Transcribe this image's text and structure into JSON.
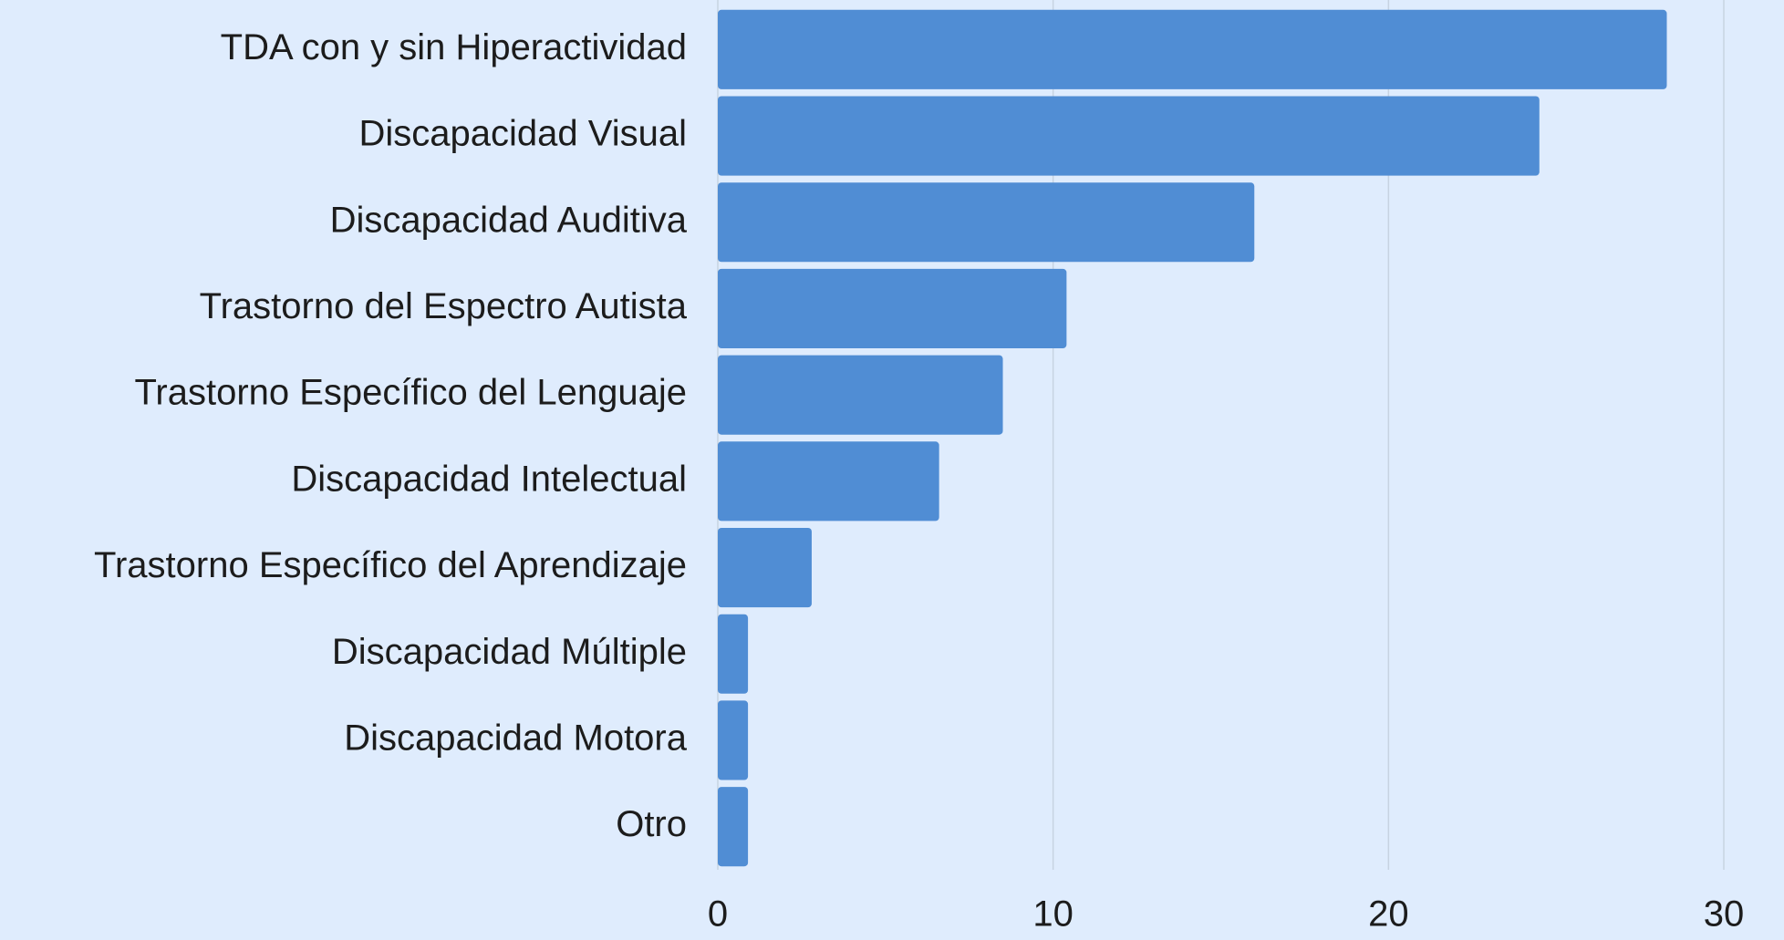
{
  "chart_data": {
    "type": "hbar",
    "categories": [
      "TDA con y sin Hiperactividad",
      "Discapacidad Visual",
      "Discapacidad Auditiva",
      "Trastorno del Espectro Autista",
      "Trastorno Específico del Lenguaje",
      "Discapacidad Intelectual",
      "Trastorno Específico del Aprendizaje",
      "Discapacidad Múltiple",
      "Discapacidad Motora",
      "Otro"
    ],
    "values": [
      28.3,
      24.5,
      16.0,
      10.4,
      8.5,
      6.6,
      2.8,
      0.9,
      0.9,
      0.9
    ],
    "color": "#508dd4",
    "xlim": [
      0,
      30
    ],
    "xticks": [
      0,
      10,
      20,
      30
    ],
    "grid": true
  }
}
